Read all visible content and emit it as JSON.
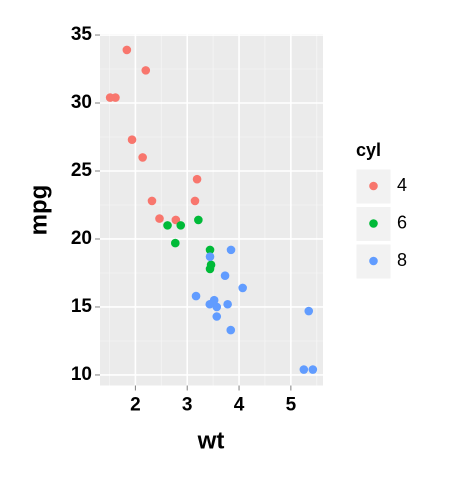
{
  "chart_data": {
    "type": "scatter",
    "x_label": "wt",
    "y_label": "mpg",
    "legend_title": "cyl",
    "xlim": [
      1.317,
      5.62
    ],
    "ylim": [
      9.225,
      35.075
    ],
    "xticks": [
      2,
      3,
      4,
      5
    ],
    "yticks": [
      10,
      15,
      20,
      25,
      30,
      35
    ],
    "grid": true,
    "legend_position": "right",
    "series": [
      {
        "name": "4",
        "color": "#F8766D",
        "x": [
          2.32,
          3.19,
          3.15,
          2.2,
          1.615,
          1.835,
          2.465,
          1.935,
          2.14,
          1.513,
          2.78
        ],
        "values": [
          22.8,
          24.4,
          22.8,
          32.4,
          30.4,
          33.9,
          21.5,
          27.3,
          26.0,
          30.4,
          21.4
        ]
      },
      {
        "name": "6",
        "color": "#00BA38",
        "x": [
          2.62,
          2.875,
          3.215,
          3.46,
          3.44,
          3.44,
          2.77
        ],
        "values": [
          21.0,
          21.0,
          21.4,
          18.1,
          19.2,
          17.8,
          19.7
        ]
      },
      {
        "name": "8",
        "color": "#619CFF",
        "x": [
          3.44,
          3.57,
          4.07,
          3.73,
          3.78,
          5.25,
          5.424,
          5.345,
          3.52,
          3.435,
          3.84,
          3.845,
          3.17,
          3.57
        ],
        "values": [
          18.7,
          14.3,
          16.4,
          17.3,
          15.2,
          10.4,
          10.4,
          14.7,
          15.5,
          15.2,
          13.3,
          19.2,
          15.8,
          15.0
        ]
      }
    ]
  }
}
